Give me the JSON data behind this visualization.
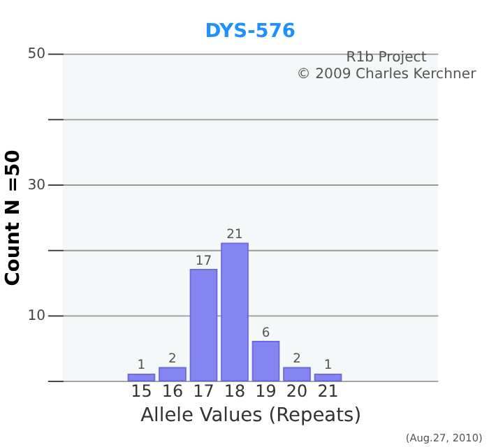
{
  "chart_data": {
    "type": "bar",
    "title": "DYS-576",
    "xlabel": "Allele Values (Repeats)",
    "ylabel": "Count N =50",
    "categories": [
      null,
      null,
      "15",
      "16",
      "17",
      "18",
      "19",
      "20",
      "21",
      null,
      null,
      null
    ],
    "values": [
      null,
      null,
      1,
      2,
      17,
      21,
      6,
      2,
      1,
      null,
      null,
      null
    ],
    "color": "#8585f2",
    "data_labels": true,
    "grid": "y",
    "ylim": [
      0,
      50
    ],
    "yticks": [
      {
        "value": 0,
        "label": null
      },
      10,
      {
        "value": 20,
        "label": null
      },
      30,
      {
        "value": 40,
        "label": null
      },
      50
    ],
    "annotations": [
      "R1b Project",
      "© 2009 Charles Kerchner",
      "(Aug.27, 2010)"
    ]
  }
}
